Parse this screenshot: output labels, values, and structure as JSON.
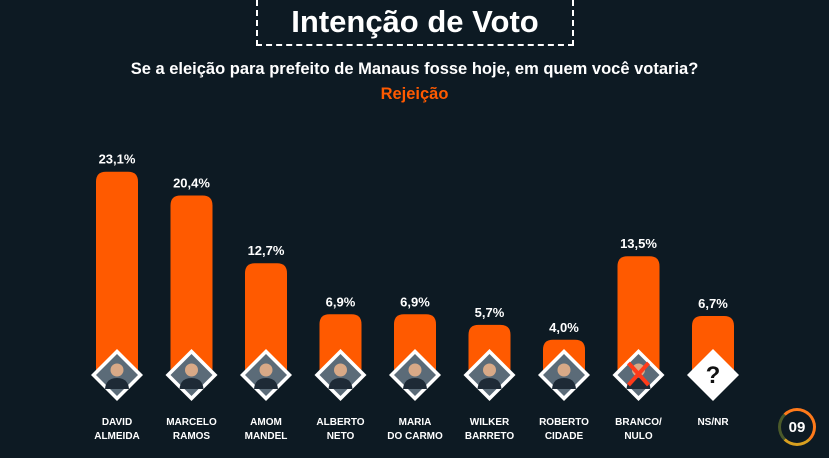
{
  "header": {
    "title": "Intenção de Voto",
    "subtitle": "Se a eleição para prefeito de Manaus fosse hoje, em quem você votaria?",
    "tag": "Rejeição"
  },
  "page_number": "09",
  "colors": {
    "bar": "#ff5a00",
    "background": "#0d1a23",
    "accent": "#ff5a00"
  },
  "chart_data": {
    "type": "bar",
    "categories": [
      [
        "DAVID",
        "ALMEIDA"
      ],
      [
        "MARCELO",
        "RAMOS"
      ],
      [
        "AMOM",
        "MANDEL"
      ],
      [
        "ALBERTO",
        "NETO"
      ],
      [
        "MARIA",
        "DO CARMO"
      ],
      [
        "WILKER",
        "BARRETO"
      ],
      [
        "ROBERTO",
        "CIDADE"
      ],
      [
        "BRANCO/",
        "NULO"
      ],
      [
        "NS/NR"
      ]
    ],
    "values": [
      23.1,
      20.4,
      12.7,
      6.9,
      6.9,
      5.7,
      4.0,
      13.5,
      6.7
    ],
    "value_labels": [
      "23,1%",
      "20,4%",
      "12,7%",
      "6,9%",
      "6,9%",
      "5,7%",
      "4,0%",
      "13,5%",
      "6,7%"
    ],
    "icons": [
      "candidate-photo-icon",
      "candidate-photo-icon",
      "candidate-photo-icon",
      "candidate-photo-icon",
      "candidate-photo-icon",
      "candidate-photo-icon",
      "candidate-photo-icon",
      "blank-null-icon",
      "question-mark-icon"
    ],
    "ns_symbol": "?",
    "ylim": [
      0,
      25
    ],
    "grid": false,
    "legend": "none"
  }
}
